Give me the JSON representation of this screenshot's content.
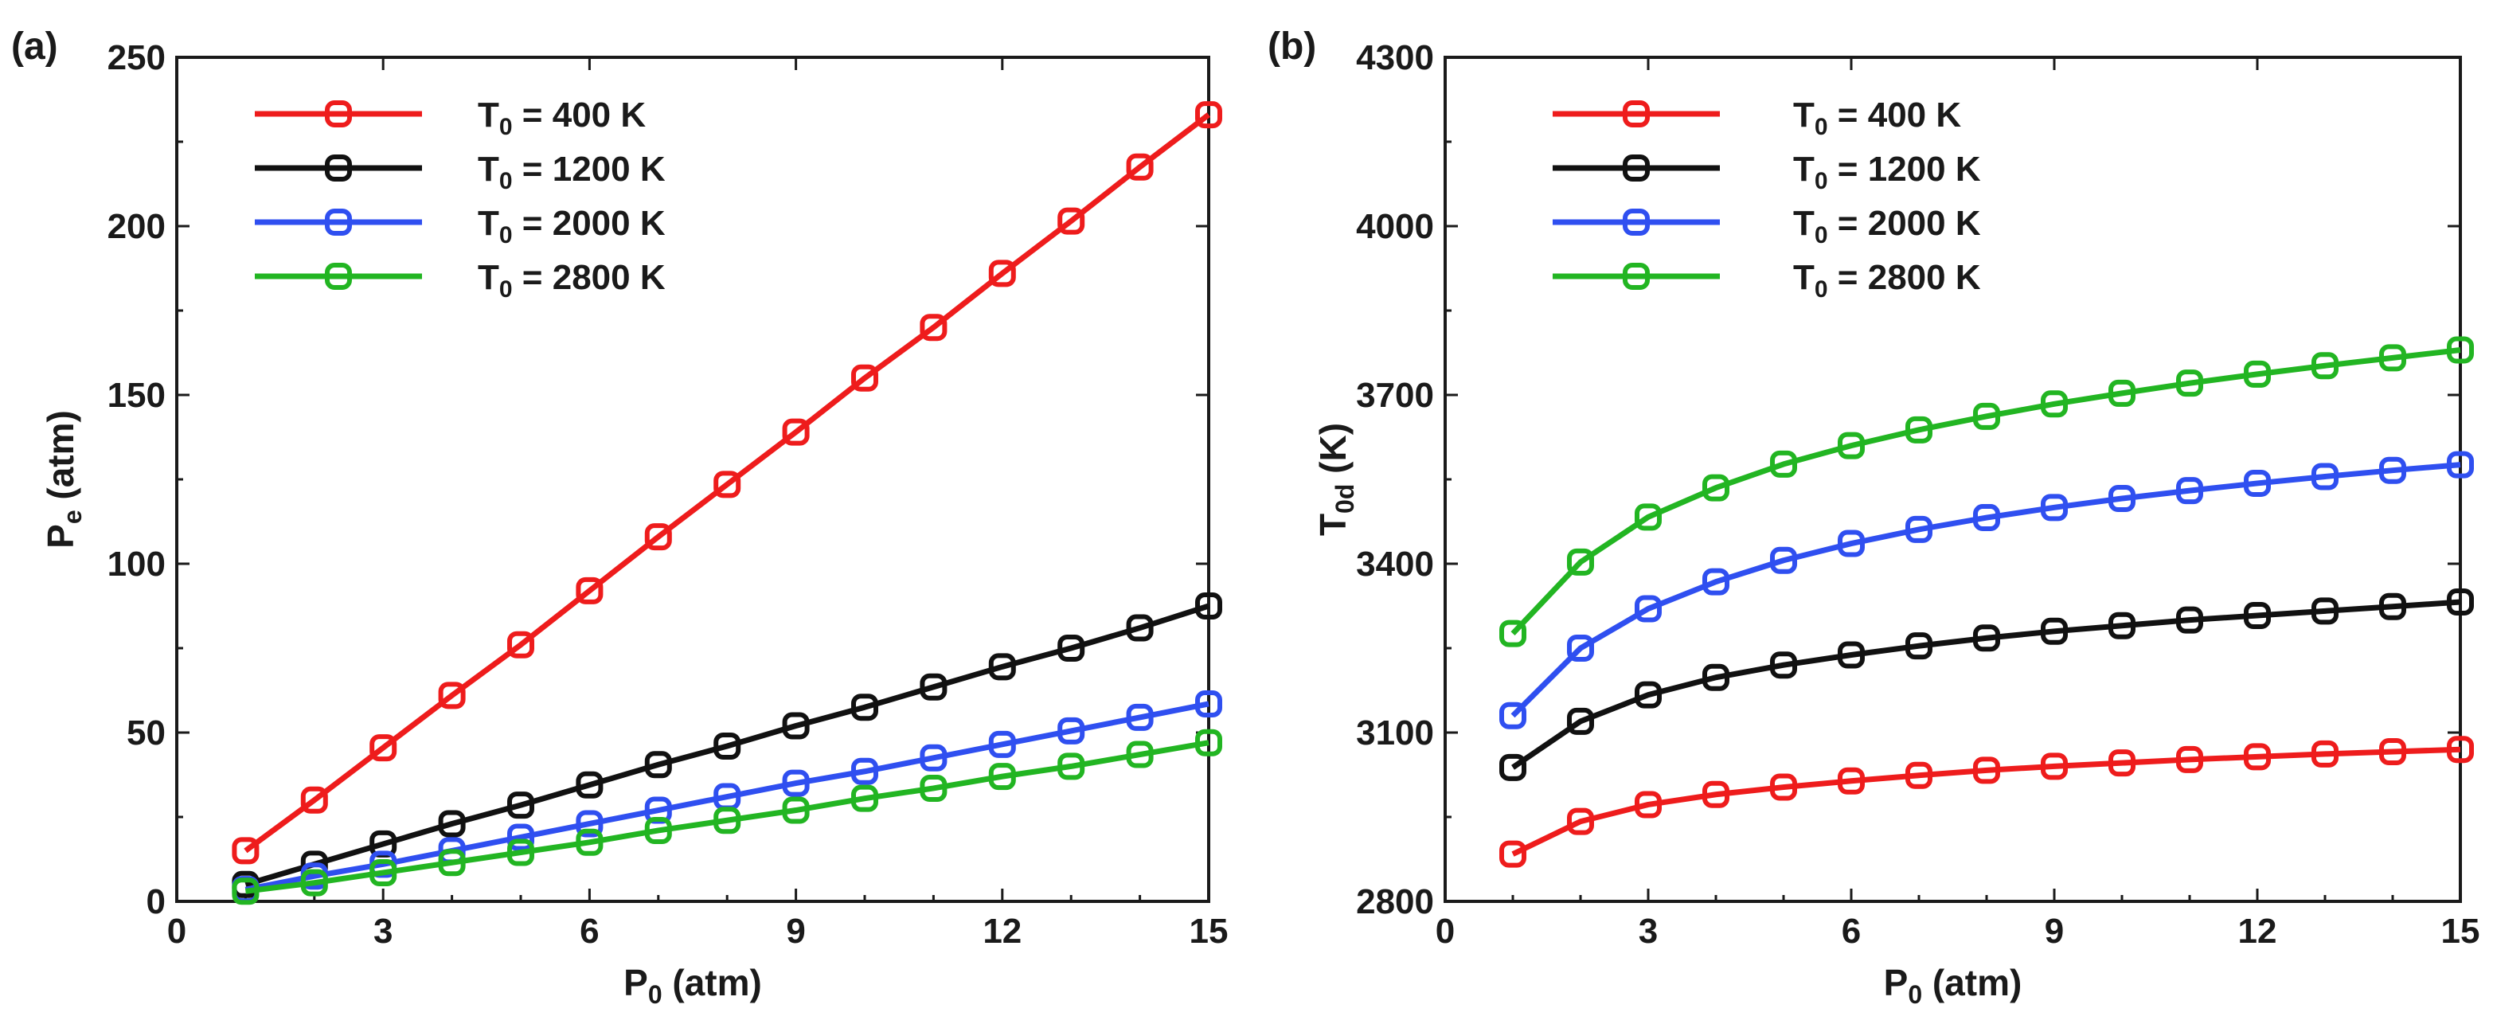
{
  "chart_data": [
    {
      "type": "line",
      "panel_label": "(a)",
      "xlabel": {
        "main": "P",
        "sub": "0",
        "rest": " (atm)"
      },
      "ylabel": {
        "main": "P",
        "sub": "e",
        "rest": " (atm)"
      },
      "xlim": [
        0,
        15
      ],
      "ylim": [
        0,
        250
      ],
      "xticks": [
        0,
        3,
        6,
        9,
        12,
        15
      ],
      "yticks": [
        0,
        50,
        100,
        150,
        200,
        250
      ],
      "legend_position": "top-left",
      "x": [
        1,
        2,
        3,
        4,
        5,
        6,
        7,
        8,
        9,
        10,
        11,
        12,
        13,
        14,
        15
      ],
      "series": [
        {
          "name_main": "T",
          "name_sub": "0",
          "name_rest": " = 400 K",
          "color": "#ee1c1c",
          "values": [
            15,
            30,
            45.5,
            61,
            76,
            92,
            108,
            123.5,
            139,
            155,
            170,
            186,
            201.5,
            217.5,
            233
          ]
        },
        {
          "name_main": "T",
          "name_sub": "0",
          "name_rest": " = 1200 K",
          "color": "#111111",
          "values": [
            5,
            11,
            17,
            23,
            28.5,
            34.5,
            40.5,
            46,
            52,
            57.5,
            63.5,
            69.5,
            75,
            81,
            87.5
          ]
        },
        {
          "name_main": "T",
          "name_sub": "0",
          "name_rest": " = 2000 K",
          "color": "#2f4ff0",
          "values": [
            3.5,
            7.5,
            11,
            15,
            19,
            23,
            27,
            31,
            35,
            38.5,
            42.5,
            46.5,
            50.5,
            54.5,
            58.5
          ]
        },
        {
          "name_main": "T",
          "name_sub": "0",
          "name_rest": " = 2800 K",
          "color": "#22b522",
          "values": [
            3,
            5.5,
            8.5,
            11.5,
            14.5,
            17.5,
            21,
            24,
            27,
            30.5,
            33.5,
            37,
            40,
            43.5,
            47
          ]
        }
      ]
    },
    {
      "type": "line",
      "panel_label": "(b)",
      "xlabel": {
        "main": "P",
        "sub": "0",
        "rest": " (atm)"
      },
      "ylabel": {
        "main": "T",
        "sub": "0d",
        "rest": " (K)"
      },
      "xlim": [
        0,
        15
      ],
      "ylim": [
        2800,
        4300
      ],
      "xticks": [
        0,
        3,
        6,
        9,
        12,
        15
      ],
      "yticks": [
        2800,
        3100,
        3400,
        3700,
        4000,
        4300
      ],
      "legend_position": "top-left",
      "x": [
        1,
        2,
        3,
        4,
        5,
        6,
        7,
        8,
        9,
        10,
        11,
        12,
        13,
        14,
        15
      ],
      "series": [
        {
          "name_main": "T",
          "name_sub": "0",
          "name_rest": " = 400 K",
          "color": "#ee1c1c",
          "values": [
            2884,
            2942,
            2972,
            2990,
            3003,
            3014,
            3024,
            3033,
            3040,
            3046,
            3052,
            3057,
            3062,
            3066,
            3070
          ]
        },
        {
          "name_main": "T",
          "name_sub": "0",
          "name_rest": " = 1200 K",
          "color": "#111111",
          "values": [
            3038,
            3120,
            3167,
            3198,
            3220,
            3238,
            3254,
            3268,
            3280,
            3290,
            3300,
            3308,
            3316,
            3324,
            3332
          ]
        },
        {
          "name_main": "T",
          "name_sub": "0",
          "name_rest": " = 2000 K",
          "color": "#2f4ff0",
          "values": [
            3130,
            3250,
            3320,
            3368,
            3406,
            3436,
            3461,
            3482,
            3500,
            3516,
            3530,
            3543,
            3555,
            3566,
            3576
          ]
        },
        {
          "name_main": "T",
          "name_sub": "0",
          "name_rest": " = 2800 K",
          "color": "#22b522",
          "values": [
            3276,
            3403,
            3483,
            3535,
            3577,
            3610,
            3638,
            3662,
            3684,
            3703,
            3721,
            3737,
            3752,
            3766,
            3780
          ]
        }
      ]
    }
  ]
}
